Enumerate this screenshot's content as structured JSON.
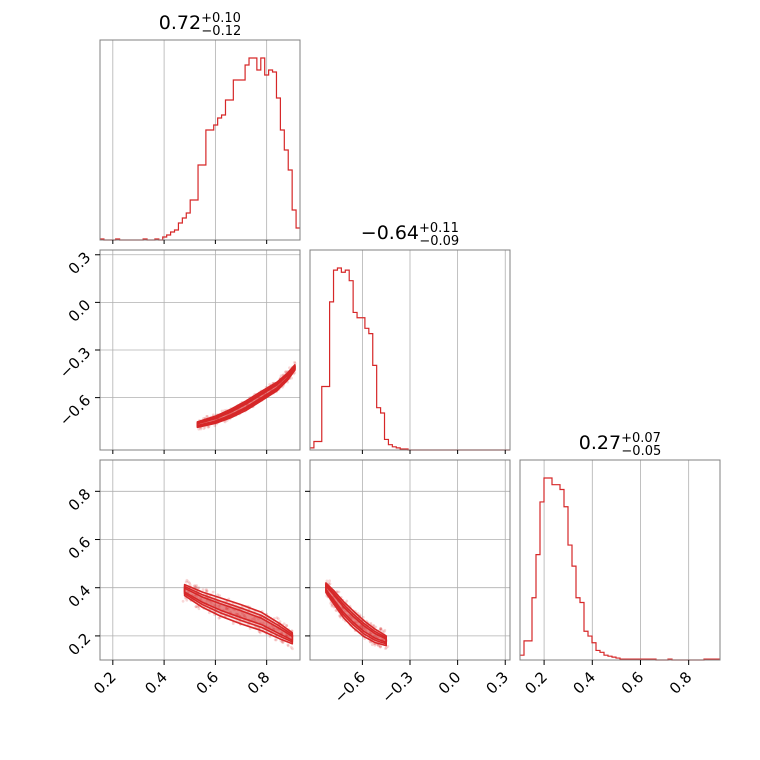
{
  "colors": {
    "series": "#d62728",
    "grid": "#b0b0b0",
    "frame": "#808080"
  },
  "chart_data": {
    "type": "corner",
    "parameters": [
      {
        "title": {
          "value": "0.72",
          "plus": "+0.10",
          "minus": "−0.12"
        },
        "range": [
          0.15,
          0.93
        ],
        "ticks": [
          "0.2",
          "0.4",
          "0.6",
          "0.8"
        ],
        "tick_values": [
          0.2,
          0.4,
          0.6,
          0.8
        ]
      },
      {
        "title": {
          "value": "−0.64",
          "plus": "+0.11",
          "minus": "−0.09"
        },
        "range": [
          -0.93,
          0.33
        ],
        "ticks": [
          "−0.6",
          "−0.3",
          "0.0",
          "0.3"
        ],
        "tick_values": [
          -0.6,
          -0.3,
          0.0,
          0.3
        ]
      },
      {
        "title": {
          "value": "0.27",
          "plus": "+0.07",
          "minus": "−0.05"
        },
        "range": [
          0.1,
          0.93
        ],
        "ticks": [
          "0.2",
          "0.4",
          "0.6",
          "0.8"
        ],
        "tick_values": [
          0.2,
          0.4,
          0.6,
          0.8
        ]
      }
    ],
    "marginals": [
      {
        "name": "hist-param-1",
        "bin_start": 0.15,
        "bin_end": 0.93,
        "counts": [
          1,
          0,
          0,
          0,
          1,
          0,
          0,
          0,
          0,
          0,
          0,
          1,
          0,
          0,
          1,
          0,
          3,
          5,
          8,
          10,
          17,
          22,
          27,
          40,
          40,
          75,
          75,
          110,
          110,
          115,
          122,
          125,
          140,
          140,
          160,
          160,
          160,
          175,
          182,
          182,
          170,
          182,
          165,
          170,
          168,
          142,
          110,
          90,
          70,
          30,
          12
        ]
      },
      {
        "name": "hist-param-2",
        "bin_start": -0.93,
        "bin_end": 0.33,
        "counts": [
          2,
          8,
          8,
          60,
          60,
          140,
          170,
          172,
          168,
          170,
          160,
          130,
          125,
          125,
          115,
          110,
          80,
          40,
          35,
          10,
          5,
          3,
          2,
          1,
          1,
          0,
          0,
          0,
          0,
          0,
          0,
          0,
          0,
          0,
          0,
          0,
          0,
          0,
          0,
          0,
          0,
          0,
          0,
          0,
          0,
          0,
          0,
          0,
          0,
          0,
          0
        ]
      },
      {
        "name": "hist-param-3",
        "bin_start": 0.1,
        "bin_end": 0.93,
        "counts": [
          5,
          20,
          20,
          65,
          110,
          165,
          190,
          190,
          183,
          183,
          178,
          160,
          120,
          98,
          65,
          60,
          30,
          25,
          18,
          10,
          8,
          5,
          4,
          3,
          2,
          1,
          1,
          1,
          1,
          1,
          1,
          1,
          1,
          1,
          0,
          0,
          0,
          1,
          0,
          0,
          0,
          0,
          0,
          0,
          0,
          0,
          1,
          1,
          1,
          1
        ]
      }
    ],
    "pairs": [
      {
        "name": "param1-vs-param2",
        "x_param": 0,
        "y_param": 1,
        "ridge": [
          [
            0.53,
            -0.77
          ],
          [
            0.6,
            -0.74
          ],
          [
            0.66,
            -0.7
          ],
          [
            0.72,
            -0.65
          ],
          [
            0.78,
            -0.59
          ],
          [
            0.84,
            -0.53
          ],
          [
            0.88,
            -0.47
          ],
          [
            0.91,
            -0.41
          ]
        ],
        "width_y": 0.03
      },
      {
        "name": "param1-vs-param3",
        "x_param": 0,
        "y_param": 2,
        "ridge": [
          [
            0.48,
            0.39
          ],
          [
            0.55,
            0.35
          ],
          [
            0.62,
            0.32
          ],
          [
            0.7,
            0.29
          ],
          [
            0.78,
            0.26
          ],
          [
            0.85,
            0.22
          ],
          [
            0.9,
            0.19
          ]
        ],
        "width_y": 0.04
      },
      {
        "name": "param2-vs-param3",
        "x_param": 1,
        "y_param": 2,
        "ridge": [
          [
            -0.83,
            0.4
          ],
          [
            -0.78,
            0.36
          ],
          [
            -0.72,
            0.31
          ],
          [
            -0.66,
            0.27
          ],
          [
            -0.59,
            0.23
          ],
          [
            -0.52,
            0.2
          ],
          [
            -0.45,
            0.18
          ]
        ],
        "width_y": 0.035
      }
    ]
  }
}
